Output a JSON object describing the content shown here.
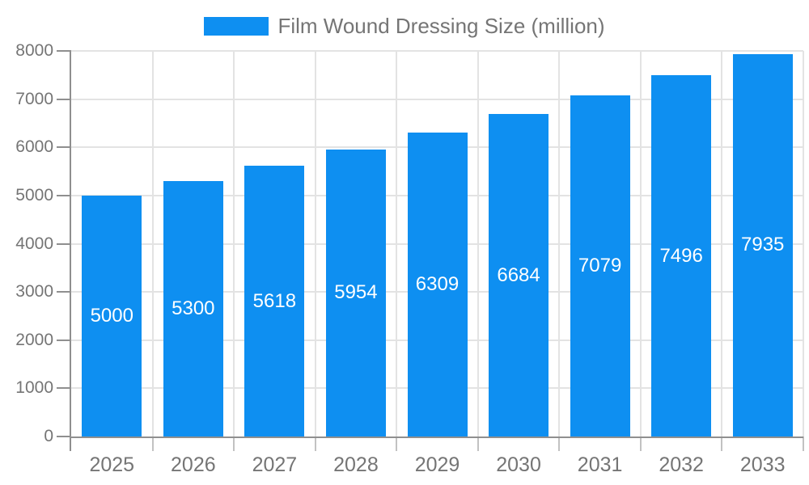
{
  "chart_data": {
    "type": "bar",
    "title": "",
    "categories": [
      "2025",
      "2026",
      "2027",
      "2028",
      "2029",
      "2030",
      "2031",
      "2032",
      "2033"
    ],
    "series": [
      {
        "name": "Film Wound Dressing Size (million)",
        "values": [
          5000,
          5300,
          5618,
          5954,
          6309,
          6684,
          7079,
          7496,
          7935
        ]
      }
    ],
    "legend": [
      "Film Wound Dressing Size (million)"
    ],
    "legend_position": "top",
    "xlabel": "",
    "ylabel": "",
    "ylim": [
      0,
      8000
    ],
    "ytick_step": 1000,
    "yticks": [
      0,
      1000,
      2000,
      3000,
      4000,
      5000,
      6000,
      7000,
      8000
    ],
    "grid": true,
    "bar_value_labels_shown": true,
    "colors": {
      "bar": "#0e8ff1",
      "bar_value_label": "#ffffff",
      "axis": "#8f8f8f",
      "gridline": "#e3e3e3",
      "x_tick": "#c2c2c2",
      "tick_label": "#757575",
      "legend_text": "#757575",
      "background": "#ffffff"
    }
  }
}
